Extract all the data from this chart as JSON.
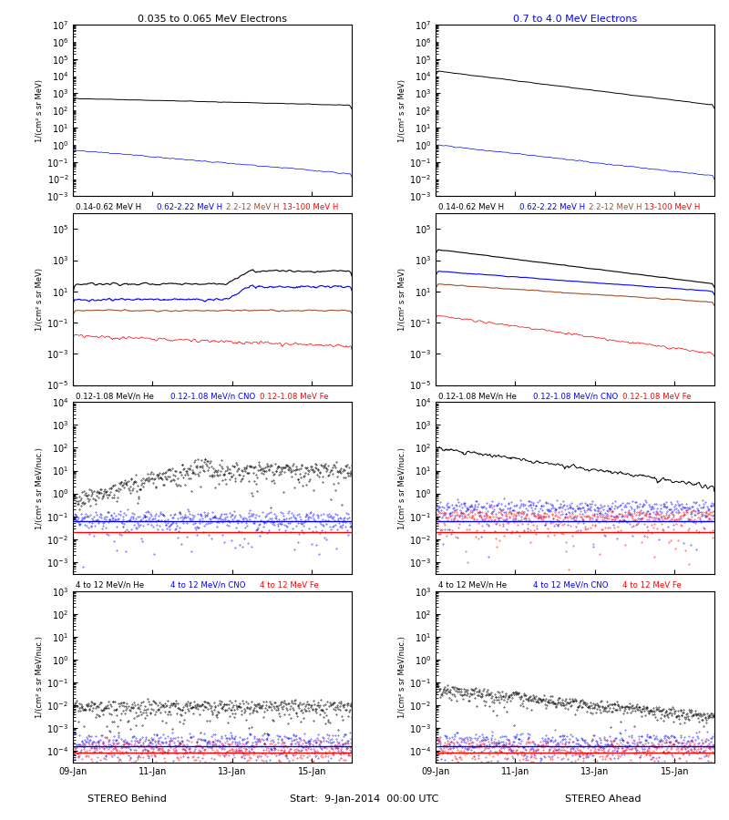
{
  "title_row1_left": "0.035 to 0.065 MeV Electrons",
  "title_row1_right": "0.7 to 4.0 MeV Electrons",
  "title_row2_texts": [
    "0.14-0.62 MeV H",
    "0.62-2.22 MeV H",
    "2.2-12 MeV H",
    "13-100 MeV H"
  ],
  "title_row2_colors": [
    "black",
    "blue",
    "brown",
    "red"
  ],
  "title_row3_texts": [
    "0.12-1.08 MeV/n He",
    "0.12-1.08 MeV/n CNO",
    "0.12-1.08 MeV Fe"
  ],
  "title_row3_colors": [
    "black",
    "blue",
    "red"
  ],
  "title_row4_texts": [
    "4 to 12 MeV/n He",
    "4 to 12 MeV/n CNO",
    "4 to 12 MeV Fe"
  ],
  "title_row4_colors": [
    "black",
    "blue",
    "red"
  ],
  "ylabel_mev": "1/(cm² s sr MeV)",
  "ylabel_nuc": "1/(cm² s sr MeV/nuc.)",
  "xlabel_left": "STEREO Behind",
  "xlabel_right": "STEREO Ahead",
  "xlabel_center": "Start:  9-Jan-2014  00:00 UTC",
  "xtick_labels": [
    "09-Jan",
    "11-Jan",
    "13-Jan",
    "15-Jan"
  ],
  "n_points": 500,
  "colors": {
    "black": "#000000",
    "blue": "#0000ff",
    "brown": "#a0522d",
    "red": "#ff0000"
  }
}
